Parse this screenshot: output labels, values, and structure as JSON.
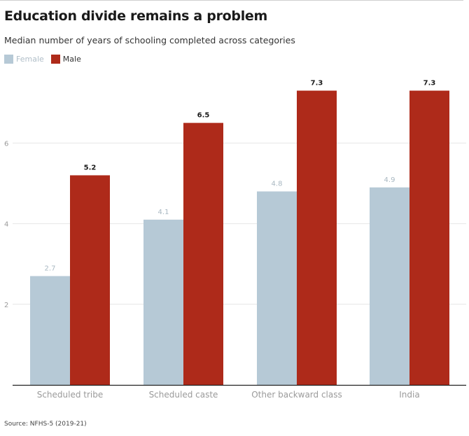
{
  "title": "Education divide remains a problem",
  "subtitle": "Median number of years of schooling completed across categories",
  "source": "Source: NFHS-5 (2019-21)",
  "legend": [
    {
      "name": "Female",
      "color": "#b6c9d6"
    },
    {
      "name": "Male",
      "color": "#ae2a1a"
    }
  ],
  "chart_data": {
    "type": "bar",
    "categories": [
      "Scheduled tribe",
      "Scheduled caste",
      "Other backward class",
      "India"
    ],
    "series": [
      {
        "name": "Female",
        "color": "#b6c9d6",
        "values": [
          2.7,
          4.1,
          4.8,
          4.9
        ]
      },
      {
        "name": "Male",
        "color": "#ae2a1a",
        "values": [
          5.2,
          6.5,
          7.3,
          7.3
        ]
      }
    ],
    "yticks": [
      2,
      4,
      6
    ],
    "ylim": [
      0,
      7.5
    ],
    "grid": true,
    "legend_position": "top-left"
  }
}
